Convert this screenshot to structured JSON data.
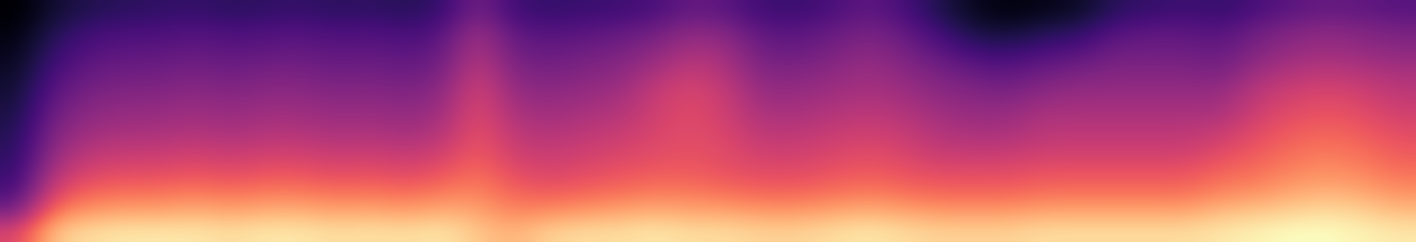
{
  "chart_data": {
    "type": "heatmap",
    "tick_labels": false,
    "cells": [
      [
        10,
        18,
        22,
        24,
        25,
        26,
        24,
        25,
        26,
        24,
        25,
        23,
        26,
        40,
        28,
        26,
        27,
        28,
        30,
        36,
        34,
        28,
        27,
        30,
        35,
        30,
        22,
        15,
        12,
        14,
        16,
        24,
        26,
        28,
        26,
        30,
        34,
        36,
        35,
        33
      ],
      [
        12,
        22,
        28,
        30,
        30,
        32,
        30,
        31,
        32,
        30,
        31,
        29,
        32,
        48,
        34,
        32,
        33,
        35,
        38,
        44,
        42,
        34,
        33,
        36,
        40,
        36,
        28,
        20,
        18,
        22,
        24,
        32,
        34,
        34,
        32,
        38,
        42,
        44,
        42,
        40
      ],
      [
        14,
        26,
        32,
        34,
        34,
        36,
        34,
        35,
        36,
        34,
        35,
        33,
        36,
        52,
        38,
        36,
        38,
        40,
        44,
        50,
        48,
        38,
        37,
        40,
        44,
        40,
        34,
        28,
        26,
        30,
        32,
        38,
        38,
        38,
        36,
        42,
        46,
        48,
        46,
        44
      ],
      [
        16,
        30,
        36,
        38,
        38,
        40,
        38,
        40,
        40,
        38,
        39,
        37,
        40,
        56,
        42,
        40,
        42,
        44,
        50,
        56,
        52,
        42,
        42,
        44,
        48,
        44,
        40,
        36,
        34,
        38,
        40,
        42,
        42,
        42,
        40,
        48,
        52,
        54,
        52,
        50
      ],
      [
        18,
        34,
        40,
        42,
        42,
        44,
        42,
        44,
        44,
        42,
        43,
        41,
        44,
        60,
        46,
        44,
        46,
        48,
        56,
        60,
        56,
        46,
        46,
        48,
        50,
        48,
        44,
        42,
        40,
        44,
        46,
        46,
        46,
        46,
        46,
        54,
        58,
        60,
        58,
        54
      ],
      [
        20,
        38,
        44,
        46,
        46,
        48,
        46,
        48,
        48,
        46,
        47,
        45,
        48,
        62,
        50,
        48,
        50,
        52,
        58,
        62,
        58,
        50,
        50,
        52,
        54,
        52,
        48,
        46,
        46,
        50,
        50,
        50,
        50,
        50,
        50,
        58,
        62,
        64,
        62,
        58
      ],
      [
        22,
        42,
        48,
        50,
        50,
        52,
        50,
        52,
        52,
        50,
        51,
        49,
        52,
        64,
        54,
        52,
        54,
        56,
        60,
        62,
        60,
        54,
        54,
        56,
        58,
        56,
        52,
        50,
        50,
        54,
        54,
        54,
        54,
        54,
        56,
        62,
        66,
        68,
        66,
        62
      ],
      [
        24,
        46,
        54,
        56,
        56,
        58,
        56,
        58,
        58,
        56,
        57,
        55,
        58,
        66,
        58,
        56,
        58,
        60,
        62,
        64,
        62,
        58,
        58,
        60,
        62,
        60,
        56,
        56,
        56,
        58,
        58,
        58,
        58,
        58,
        62,
        66,
        70,
        72,
        70,
        66
      ],
      [
        26,
        52,
        60,
        62,
        62,
        64,
        62,
        64,
        64,
        62,
        63,
        61,
        64,
        70,
        62,
        60,
        62,
        64,
        66,
        66,
        64,
        62,
        62,
        64,
        66,
        64,
        62,
        62,
        62,
        64,
        64,
        64,
        64,
        64,
        68,
        70,
        74,
        76,
        74,
        70
      ],
      [
        30,
        60,
        68,
        70,
        70,
        72,
        70,
        72,
        72,
        70,
        71,
        69,
        72,
        74,
        68,
        66,
        68,
        70,
        72,
        72,
        70,
        68,
        68,
        70,
        72,
        70,
        68,
        68,
        68,
        70,
        70,
        70,
        70,
        70,
        74,
        76,
        80,
        82,
        80,
        76
      ],
      [
        40,
        72,
        78,
        80,
        80,
        82,
        80,
        82,
        82,
        80,
        81,
        79,
        82,
        80,
        74,
        76,
        78,
        80,
        82,
        80,
        80,
        78,
        78,
        80,
        82,
        80,
        78,
        78,
        78,
        80,
        80,
        80,
        80,
        80,
        84,
        86,
        88,
        90,
        88,
        84
      ],
      [
        60,
        86,
        90,
        92,
        92,
        92,
        90,
        92,
        92,
        90,
        91,
        90,
        92,
        86,
        82,
        88,
        90,
        90,
        92,
        90,
        90,
        88,
        88,
        90,
        92,
        90,
        88,
        88,
        88,
        90,
        90,
        90,
        90,
        90,
        92,
        94,
        96,
        96,
        94,
        92
      ]
    ]
  }
}
